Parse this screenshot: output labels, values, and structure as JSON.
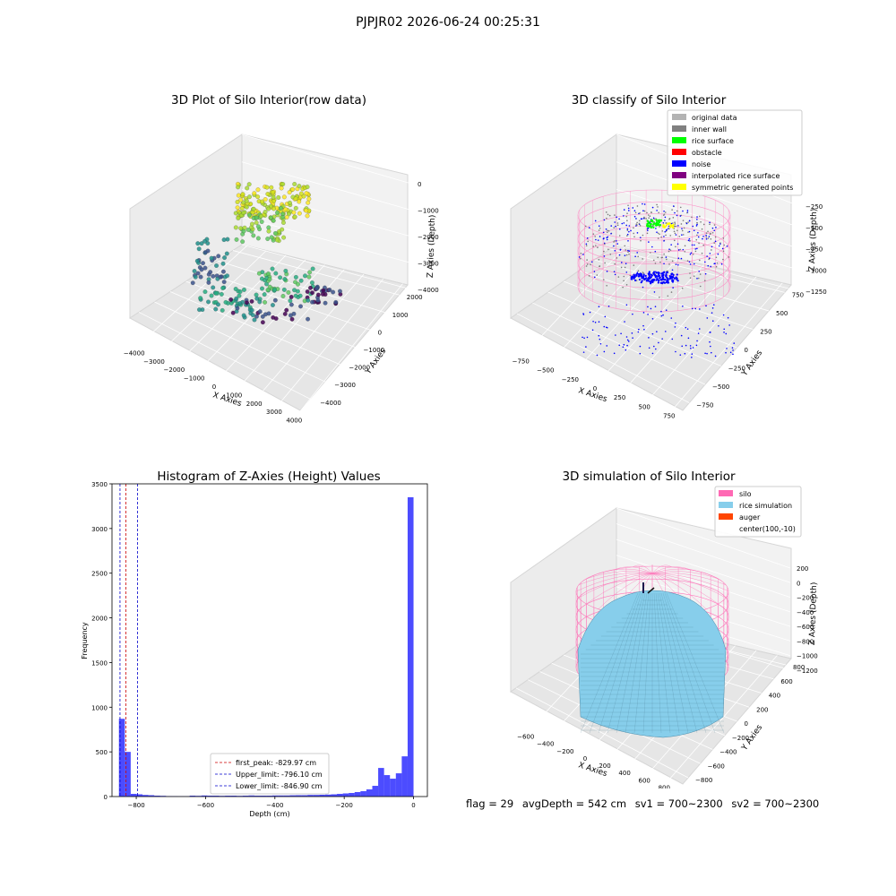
{
  "suptitle": "PJPJR02 2026-06-24 00:25:31",
  "chart_data": [
    {
      "type": "scatter",
      "title": "3D Plot of Silo Interior(row data)",
      "xlabel": "X Axies",
      "ylabel": "Y Axies",
      "zlabel": "Z Axies (Depth)",
      "x_ticks": [
        "−4000",
        "−3000",
        "−2000",
        "−1000",
        "0",
        "1000",
        "2000",
        "3000",
        "4000"
      ],
      "y_ticks": [
        "−4000",
        "−3000",
        "−2000",
        "−1000",
        "0",
        "1000",
        "2000"
      ],
      "z_ticks": [
        "0",
        "−1000",
        "−2000",
        "−3000",
        "−4000"
      ],
      "xlim": [
        -4000,
        4000
      ],
      "ylim": [
        -4000,
        2000
      ],
      "zlim": [
        -4500,
        0
      ],
      "colormap": "viridis",
      "grid": true,
      "legend": "none"
    },
    {
      "type": "scatter",
      "title": "3D classify of Silo Interior",
      "xlabel": "X Axies",
      "ylabel": "Y Axies",
      "zlabel": "Z Axies (Depth)",
      "x_ticks": [
        "−750",
        "−500",
        "−250",
        "0",
        "250",
        "500",
        "750"
      ],
      "y_ticks": [
        "−750",
        "−500",
        "−250",
        "0",
        "250",
        "500",
        "750"
      ],
      "z_ticks": [
        "−250",
        "−500",
        "−750",
        "−1000",
        "−1250"
      ],
      "z_tick_partial": "0",
      "xlim": [
        -850,
        850
      ],
      "ylim": [
        -850,
        850
      ],
      "zlim": [
        -1350,
        0
      ],
      "legend": "top-right",
      "legend_entries": [
        {
          "label": "original data",
          "color": "#b3b3b3"
        },
        {
          "label": "inner wall",
          "color": "#808080"
        },
        {
          "label": "rice surface",
          "color": "#00ff00"
        },
        {
          "label": "obstacle",
          "color": "#ff0000"
        },
        {
          "label": "noise",
          "color": "#0000ff"
        },
        {
          "label": "interpolated rice surface",
          "color": "#800080"
        },
        {
          "label": "symmetric generated points",
          "color": "#ffff00"
        }
      ],
      "wall_color": "#ff80c0"
    },
    {
      "type": "bar",
      "title": "Histogram of Z-Axies (Height) Values",
      "xlabel": "Depth (cm)",
      "ylabel": "Frequency",
      "xlim": [
        -870,
        40
      ],
      "ylim": [
        0,
        3500
      ],
      "x_ticks": [
        -800,
        -600,
        -400,
        -200,
        0
      ],
      "x_tick_labels": [
        "−800",
        "−600",
        "−400",
        "−200",
        "0"
      ],
      "y_ticks": [
        0,
        500,
        1000,
        1500,
        2000,
        2500,
        3000,
        3500
      ],
      "bin_width": 17,
      "bins_left": [
        -850,
        -833,
        -816,
        -799,
        -782,
        -765,
        -748,
        -731,
        -714,
        -697,
        -680,
        -663,
        -646,
        -629,
        -612,
        -595,
        -578,
        -561,
        -544,
        -527,
        -510,
        -493,
        -476,
        -459,
        -442,
        -425,
        -408,
        -391,
        -374,
        -357,
        -340,
        -323,
        -306,
        -289,
        -272,
        -255,
        -238,
        -221,
        -204,
        -187,
        -170,
        -153,
        -136,
        -119,
        -102,
        -85,
        -68,
        -51,
        -34,
        -17
      ],
      "values": [
        870,
        500,
        30,
        25,
        18,
        15,
        10,
        8,
        5,
        4,
        3,
        3,
        10,
        8,
        12,
        10,
        10,
        8,
        10,
        10,
        8,
        10,
        12,
        10,
        10,
        10,
        12,
        12,
        12,
        14,
        15,
        15,
        18,
        18,
        20,
        22,
        25,
        30,
        35,
        40,
        50,
        60,
        80,
        120,
        320,
        240,
        200,
        260,
        450,
        3350
      ],
      "bar_color": "#0000ff",
      "bar_alpha": 0.7,
      "legend": "lower-center",
      "vlines": [
        {
          "label": "first_peak: -829.97 cm",
          "x": -829.97,
          "color": "#cc0000"
        },
        {
          "label": "Upper_limit: -796.10 cm",
          "x": -796.1,
          "color": "#0000cc"
        },
        {
          "label": "Lower_limit: -846.90 cm",
          "x": -846.9,
          "color": "#0000cc"
        }
      ]
    },
    {
      "type": "surface",
      "title": "3D simulation of Silo Interior",
      "xlabel": "X Axies",
      "ylabel": "Y Axies",
      "zlabel": "Z Axies (Depth)",
      "x_ticks": [
        "−600",
        "−400",
        "−200",
        "0",
        "200",
        "400",
        "600",
        "800"
      ],
      "y_ticks": [
        "−800",
        "−600",
        "−400",
        "−200",
        "0",
        "200",
        "400",
        "600",
        "800"
      ],
      "z_ticks": [
        "200",
        "0",
        "−200",
        "−400",
        "−600",
        "−800",
        "−1000",
        "−1200"
      ],
      "legend": "top-right",
      "legend_entries": [
        {
          "label": "silo",
          "color": "#ff69b4"
        },
        {
          "label": "rice simulation",
          "color": "#87ceeb"
        },
        {
          "label": "auger",
          "color": "#ff4500"
        },
        {
          "label": "center(100,-10)",
          "color": "none"
        }
      ]
    }
  ],
  "footer": {
    "flag": "flag = 29",
    "avg": "avgDepth = 542 cm",
    "sv1": "sv1 = 700~2300",
    "sv2": "sv2 = 700~2300"
  }
}
